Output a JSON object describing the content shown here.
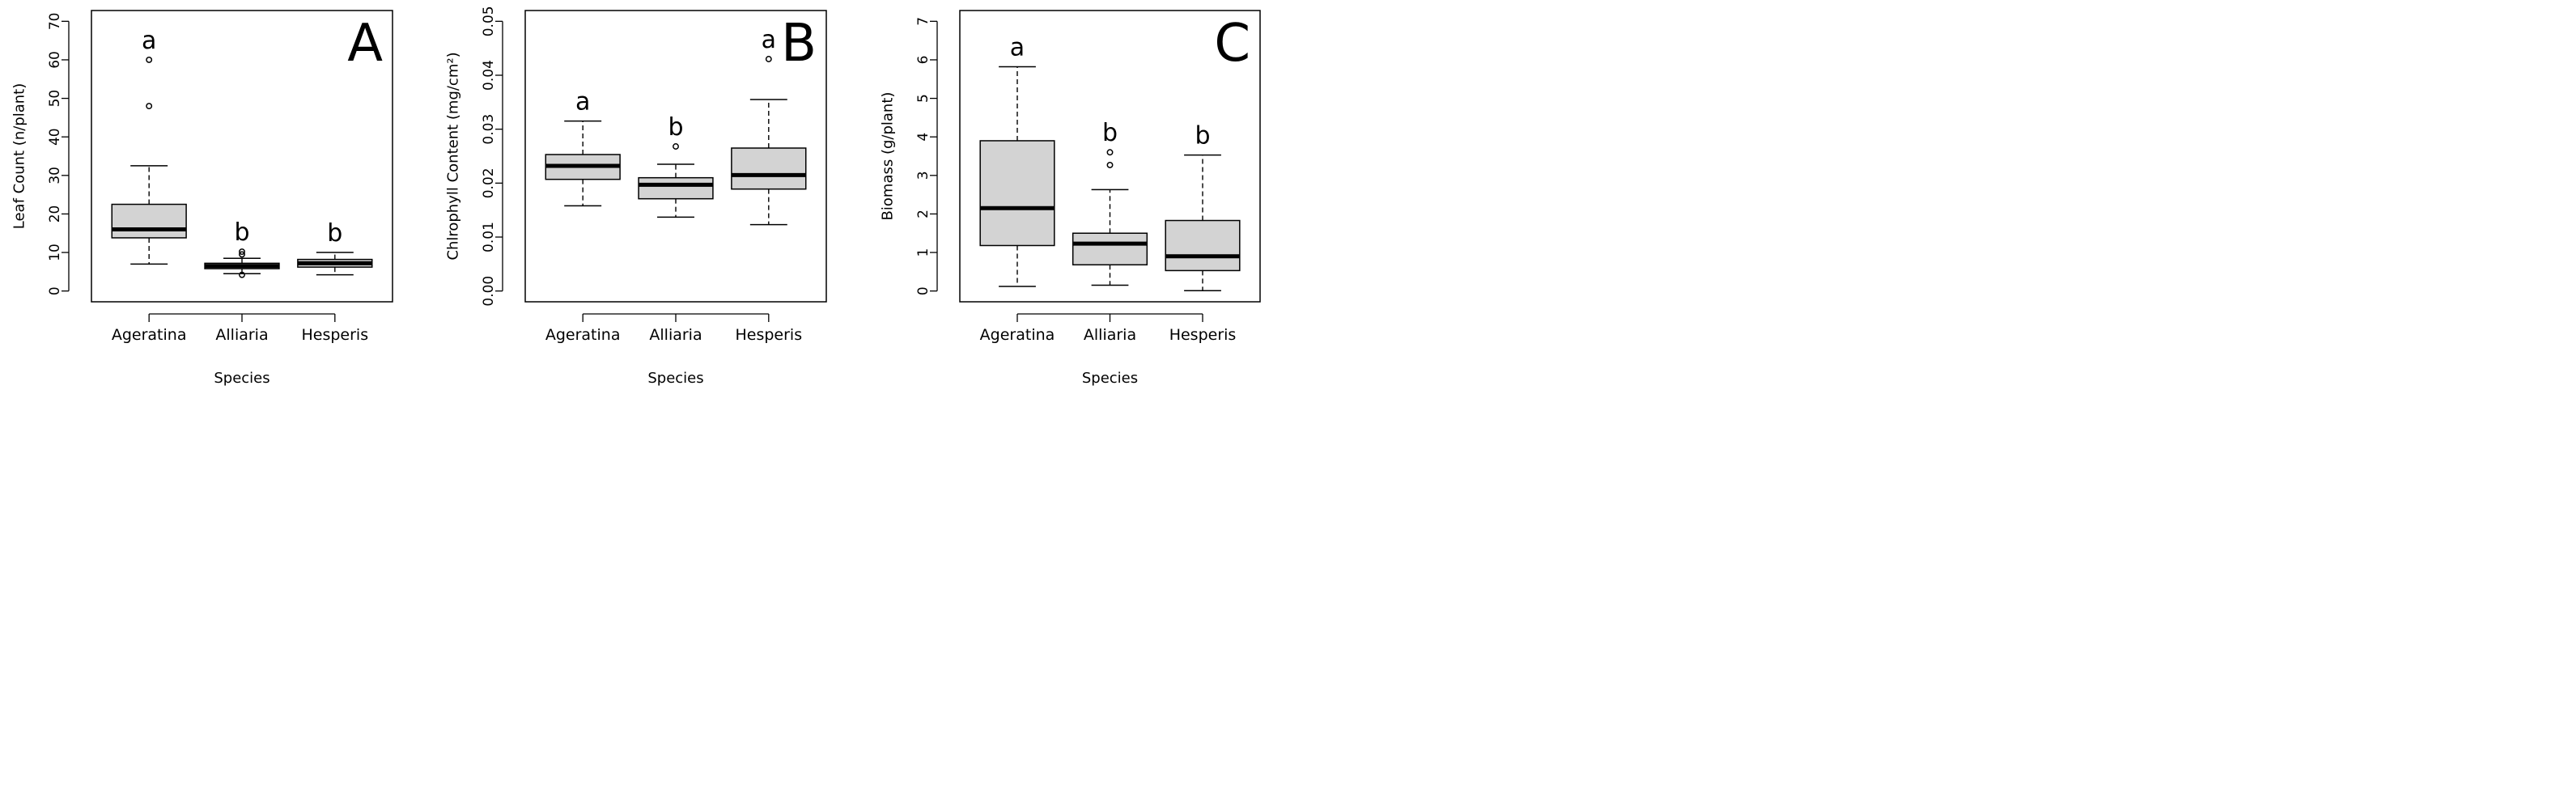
{
  "figure": {
    "x_title": "Species",
    "species": [
      "Ageratina",
      "Alliaria",
      "Hesperis"
    ],
    "colors": {
      "box_fill": "#d3d3d3",
      "stroke": "#000000",
      "background": "#ffffff"
    }
  },
  "chart_data": [
    {
      "type": "boxplot",
      "panel_label": "A",
      "xlabel": "Species",
      "ylabel": "Leaf Count (n/plant)",
      "ylim": [
        0,
        70
      ],
      "yticks": [
        0,
        10,
        20,
        30,
        40,
        50,
        60,
        70
      ],
      "ytick_labels": [
        "0",
        "10",
        "20",
        "30",
        "40",
        "50",
        "60",
        "70"
      ],
      "categories": [
        "Ageratina",
        "Alliaria",
        "Hesperis"
      ],
      "boxes": [
        {
          "name": "Ageratina",
          "whisker_low": 7,
          "q1": 13.8,
          "median": 16,
          "q3": 22.5,
          "whisker_high": 32.5,
          "outliers": [
            48,
            60
          ],
          "letter": "a"
        },
        {
          "name": "Alliaria",
          "whisker_low": 4.5,
          "q1": 5.8,
          "median": 6.5,
          "q3": 7.2,
          "whisker_high": 8.5,
          "outliers": [
            4.2,
            9.5,
            10.2
          ],
          "letter": "b"
        },
        {
          "name": "Hesperis",
          "whisker_low": 4.2,
          "q1": 6.2,
          "median": 7.2,
          "q3": 8.2,
          "whisker_high": 10,
          "outliers": [],
          "letter": "b"
        }
      ]
    },
    {
      "type": "boxplot",
      "panel_label": "B",
      "xlabel": "Species",
      "ylabel": "Chlrophyll Content (mg/cm²)",
      "ylim": [
        0,
        0.05
      ],
      "yticks": [
        0,
        0.01,
        0.02,
        0.03,
        0.04,
        0.05
      ],
      "ytick_labels": [
        "0.00",
        "0.01",
        "0.02",
        "0.03",
        "0.04",
        "0.05"
      ],
      "categories": [
        "Ageratina",
        "Alliaria",
        "Hesperis"
      ],
      "boxes": [
        {
          "name": "Ageratina",
          "whisker_low": 0.0158,
          "q1": 0.0207,
          "median": 0.0232,
          "q3": 0.0253,
          "whisker_high": 0.0315,
          "outliers": [],
          "letter": "a"
        },
        {
          "name": "Alliaria",
          "whisker_low": 0.0137,
          "q1": 0.0171,
          "median": 0.0197,
          "q3": 0.021,
          "whisker_high": 0.0235,
          "outliers": [
            0.0268
          ],
          "letter": "b"
        },
        {
          "name": "Hesperis",
          "whisker_low": 0.0123,
          "q1": 0.0189,
          "median": 0.0215,
          "q3": 0.0265,
          "whisker_high": 0.0355,
          "outliers": [
            0.043
          ],
          "letter": "a"
        }
      ]
    },
    {
      "type": "boxplot",
      "panel_label": "C",
      "xlabel": "Species",
      "ylabel": "Biomass (g/plant)",
      "ylim": [
        0,
        7
      ],
      "yticks": [
        0,
        1,
        2,
        3,
        4,
        5,
        6,
        7
      ],
      "ytick_labels": [
        "0",
        "1",
        "2",
        "3",
        "4",
        "5",
        "6",
        "7"
      ],
      "categories": [
        "Ageratina",
        "Alliaria",
        "Hesperis"
      ],
      "boxes": [
        {
          "name": "Ageratina",
          "whisker_low": 0.12,
          "q1": 1.18,
          "median": 2.15,
          "q3": 3.9,
          "whisker_high": 5.82,
          "outliers": [],
          "letter": "a"
        },
        {
          "name": "Alliaria",
          "whisker_low": 0.15,
          "q1": 0.68,
          "median": 1.23,
          "q3": 1.5,
          "whisker_high": 2.63,
          "outliers": [
            3.27,
            3.6
          ],
          "letter": "b"
        },
        {
          "name": "Hesperis",
          "whisker_low": 0.01,
          "q1": 0.53,
          "median": 0.9,
          "q3": 1.83,
          "whisker_high": 3.53,
          "outliers": [],
          "letter": "b"
        }
      ]
    }
  ]
}
